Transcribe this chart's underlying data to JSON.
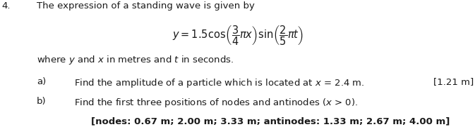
{
  "number": "4.",
  "intro_text": "The expression of a standing wave is given by",
  "equation": "$y=1.5\\cos\\!\\left(\\dfrac{3}{4}\\pi x\\right)\\sin\\!\\left(\\dfrac{2}{5}\\pi t\\right)$",
  "where_text": "where $y$ and $x$ in metres and $t$ in seconds.",
  "part_a_label": "a)",
  "part_a_text": "Find the amplitude of a particle which is located at $x$ = 2.4 m.",
  "part_a_answer": "[1.21 m]",
  "part_b_label": "b)",
  "part_b_text": "Find the first three positions of nodes and antinodes ($x$ > 0).",
  "part_b_answer": "[nodes: 0.67 m; 2.00 m; 3.33 m; antinodes: 1.33 m; 2.67 m; 4.00 m]",
  "bg_color": "#ffffff",
  "text_color": "#1a1a1a",
  "font_size_main": 9.5,
  "font_size_eq": 10.5,
  "font_size_answer": 9.5
}
